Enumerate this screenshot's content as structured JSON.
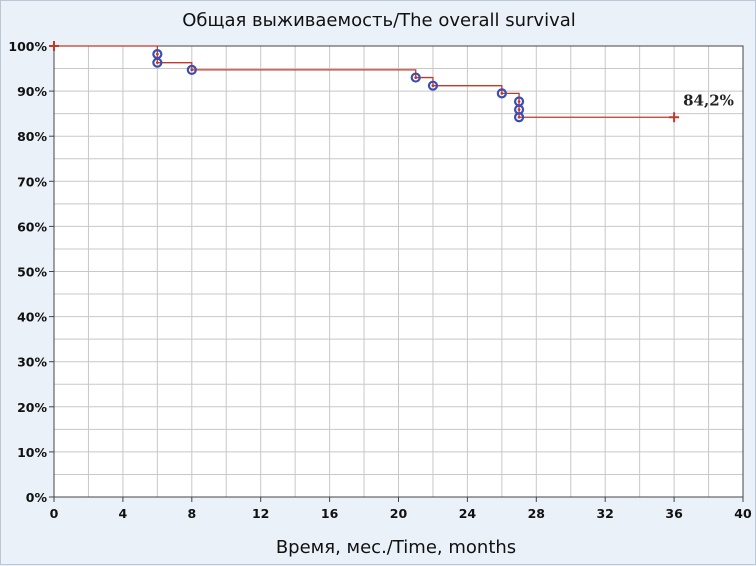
{
  "chart_data": {
    "type": "line",
    "title": "Общая выживаемость/The overall survival",
    "xlabel": "Время, мес./Time, months",
    "ylabel": "",
    "xlim": [
      0,
      40
    ],
    "ylim": [
      0,
      100
    ],
    "x_ticks": [
      0,
      4,
      8,
      12,
      16,
      20,
      24,
      28,
      32,
      36,
      40
    ],
    "y_ticks": [
      "0%",
      "10%",
      "20%",
      "30%",
      "40%",
      "50%",
      "60%",
      "70%",
      "80%",
      "90%",
      "100%"
    ],
    "grid": true,
    "series": [
      {
        "curve": "step",
        "x": [
          0,
          6,
          8,
          21,
          22,
          26,
          27,
          36
        ],
        "y": [
          100,
          96.3,
          94.7,
          93.0,
          91.2,
          89.5,
          84.2,
          84.2
        ]
      }
    ],
    "events": [
      {
        "x": 6,
        "y": 98.2
      },
      {
        "x": 6,
        "y": 96.3
      },
      {
        "x": 8,
        "y": 94.7
      },
      {
        "x": 21,
        "y": 93.0
      },
      {
        "x": 22,
        "y": 91.2
      },
      {
        "x": 26,
        "y": 89.5
      },
      {
        "x": 27,
        "y": 87.7
      },
      {
        "x": 27,
        "y": 85.9
      },
      {
        "x": 27,
        "y": 84.2
      }
    ],
    "censored": [
      {
        "x": 0,
        "y": 100
      },
      {
        "x": 36,
        "y": 84.2
      }
    ],
    "annotations": [
      {
        "text": "84,2%",
        "x": 36,
        "y": 84.2
      }
    ],
    "colors": {
      "line": "#c0392b",
      "event_marker": "#3a4fb0",
      "grid": "#c8c8c8",
      "plot_background": "#ffffff",
      "figure_background": "#eaf1f8"
    }
  }
}
